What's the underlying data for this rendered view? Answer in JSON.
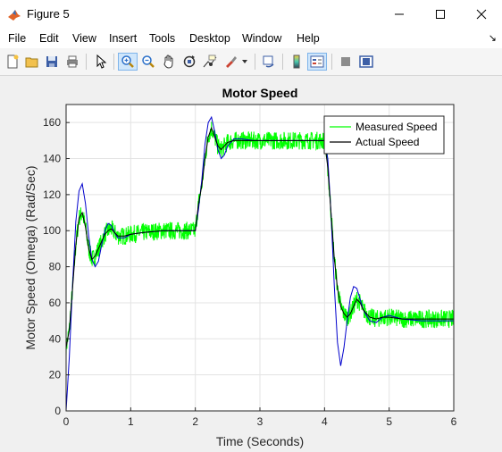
{
  "window": {
    "title": "Figure 5"
  },
  "menu": {
    "items": [
      "File",
      "Edit",
      "View",
      "Insert",
      "Tools",
      "Desktop",
      "Window",
      "Help"
    ],
    "overflow_arrow": "↘"
  },
  "toolbar": {
    "buttons": [
      "new-figure-icon",
      "open-icon",
      "save-icon",
      "print-icon",
      "pointer-icon",
      "zoom-in-icon",
      "zoom-out-icon",
      "pan-icon",
      "rotate-icon",
      "data-cursor-icon",
      "brush-icon",
      "link-plot-icon",
      "colorbar-icon",
      "legend-icon",
      "hide-plot-tools-icon",
      "show-plot-tools-icon"
    ],
    "active": "zoom-in-icon"
  },
  "chart_data": {
    "type": "line",
    "title": "Motor Speed",
    "xlabel": "Time (Seconds)",
    "ylabel": "Motor Speed (Omega) (Rad/Sec)",
    "xlim": [
      0,
      6
    ],
    "ylim": [
      0,
      170
    ],
    "xticks": [
      "0",
      "1",
      "2",
      "3",
      "4",
      "5",
      "6"
    ],
    "yticks": [
      "0",
      "20",
      "40",
      "60",
      "80",
      "100",
      "120",
      "140",
      "160"
    ],
    "grid": true,
    "legend_position": "top-right",
    "series": [
      {
        "name": "Measured Speed",
        "color": "#00ff00",
        "noise_band": 5,
        "x": [
          0,
          0.05,
          0.1,
          0.15,
          0.2,
          0.25,
          0.3,
          0.35,
          0.4,
          0.45,
          0.5,
          0.55,
          0.6,
          0.65,
          0.7,
          0.75,
          0.8,
          0.9,
          1.0,
          1.2,
          1.5,
          1.8,
          2.0,
          2.05,
          2.1,
          2.15,
          2.2,
          2.25,
          2.3,
          2.35,
          2.4,
          2.45,
          2.5,
          2.6,
          2.7,
          2.9,
          3.2,
          3.5,
          3.8,
          4.0,
          4.05,
          4.1,
          4.15,
          4.2,
          4.25,
          4.3,
          4.35,
          4.4,
          4.45,
          4.5,
          4.55,
          4.6,
          4.7,
          4.8,
          4.9,
          5.0,
          5.2,
          5.5,
          6.0
        ],
        "y": [
          35,
          45,
          68,
          92,
          107,
          110,
          102,
          90,
          84,
          86,
          90,
          94,
          98,
          100,
          101,
          99,
          97,
          97,
          98,
          99,
          100,
          100,
          100,
          115,
          125,
          140,
          152,
          157,
          152,
          147,
          145,
          147,
          149,
          150,
          150,
          150,
          150,
          150,
          150,
          150,
          135,
          110,
          85,
          68,
          58,
          54,
          52,
          54,
          58,
          62,
          60,
          56,
          52,
          51,
          52,
          52,
          51,
          51,
          51
        ]
      },
      {
        "name": "Actual Speed",
        "color": "#000000",
        "x": [
          0,
          0.05,
          0.1,
          0.15,
          0.2,
          0.25,
          0.3,
          0.35,
          0.4,
          0.45,
          0.5,
          0.55,
          0.6,
          0.65,
          0.7,
          0.75,
          0.8,
          0.9,
          1.0,
          1.2,
          1.5,
          1.8,
          2.0,
          2.05,
          2.1,
          2.15,
          2.2,
          2.25,
          2.3,
          2.35,
          2.4,
          2.45,
          2.5,
          2.6,
          2.7,
          2.9,
          3.2,
          3.5,
          3.8,
          4.0,
          4.05,
          4.1,
          4.15,
          4.2,
          4.25,
          4.3,
          4.35,
          4.4,
          4.45,
          4.5,
          4.55,
          4.6,
          4.7,
          4.8,
          4.9,
          5.0,
          5.2,
          5.5,
          6.0
        ],
        "y": [
          35,
          45,
          68,
          92,
          107,
          110,
          102,
          90,
          84,
          86,
          90,
          94,
          98,
          100,
          101,
          99,
          97,
          97,
          98,
          99,
          100,
          100,
          100,
          115,
          125,
          140,
          152,
          157,
          152,
          147,
          145,
          147,
          149,
          150,
          150,
          150,
          150,
          150,
          150,
          150,
          135,
          110,
          85,
          68,
          58,
          54,
          52,
          54,
          58,
          62,
          60,
          56,
          52,
          51,
          52,
          52,
          51,
          51,
          51
        ]
      },
      {
        "name": "",
        "color": "#0000cc",
        "x": [
          0,
          0.05,
          0.1,
          0.15,
          0.2,
          0.25,
          0.3,
          0.35,
          0.4,
          0.45,
          0.5,
          0.55,
          0.6,
          0.65,
          0.7,
          0.75,
          0.8,
          0.9,
          1.0,
          1.2,
          1.5,
          1.8,
          2.0,
          2.05,
          2.1,
          2.15,
          2.2,
          2.25,
          2.3,
          2.35,
          2.4,
          2.45,
          2.5,
          2.6,
          2.7,
          2.9,
          3.2,
          3.5,
          3.8,
          4.0,
          4.05,
          4.1,
          4.15,
          4.2,
          4.25,
          4.3,
          4.35,
          4.4,
          4.45,
          4.5,
          4.55,
          4.6,
          4.7,
          4.8,
          4.9,
          5.0,
          5.2,
          5.5,
          6.0
        ],
        "y": [
          0,
          30,
          70,
          105,
          122,
          126,
          115,
          97,
          84,
          80,
          83,
          92,
          100,
          104,
          103,
          99,
          96,
          96,
          98,
          99,
          100,
          100,
          100,
          112,
          128,
          148,
          160,
          163,
          155,
          145,
          140,
          142,
          147,
          151,
          151,
          150,
          150,
          150,
          150,
          150,
          140,
          110,
          70,
          38,
          25,
          35,
          50,
          63,
          69,
          68,
          62,
          56,
          50,
          49,
          52,
          53,
          51,
          50,
          50
        ]
      }
    ]
  }
}
